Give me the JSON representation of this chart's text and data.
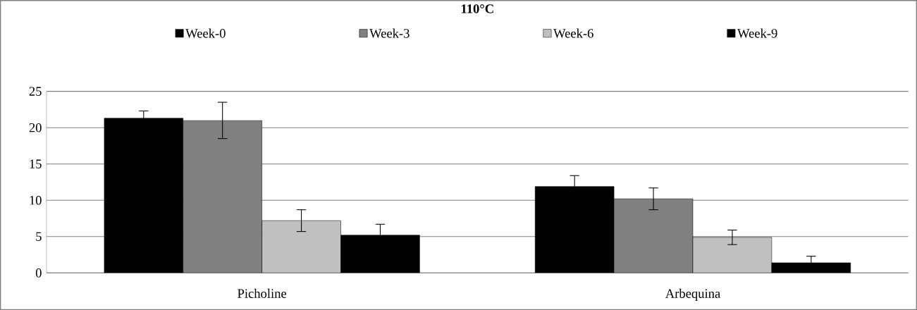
{
  "chart_data": {
    "type": "bar",
    "title": "110°C",
    "categories": [
      "Picholine",
      "Arbequina"
    ],
    "series": [
      {
        "name": "Week-0",
        "color": "#000000",
        "values": [
          21.3,
          11.9
        ],
        "errors": [
          1.0,
          1.5
        ]
      },
      {
        "name": "Week-3",
        "color": "#808080",
        "values": [
          21.0,
          10.2
        ],
        "errors": [
          2.5,
          1.5
        ]
      },
      {
        "name": "Week-6",
        "color": "#c0c0c0",
        "values": [
          7.2,
          4.9
        ],
        "errors": [
          1.5,
          1.0
        ]
      },
      {
        "name": "Week-9",
        "color": "#000000",
        "values": [
          5.2,
          1.4
        ],
        "errors": [
          1.5,
          0.9
        ]
      }
    ],
    "ylim": [
      0,
      25
    ],
    "yticks": [
      0,
      5,
      10,
      15,
      20,
      25
    ],
    "grid": "y",
    "legend": "top"
  }
}
